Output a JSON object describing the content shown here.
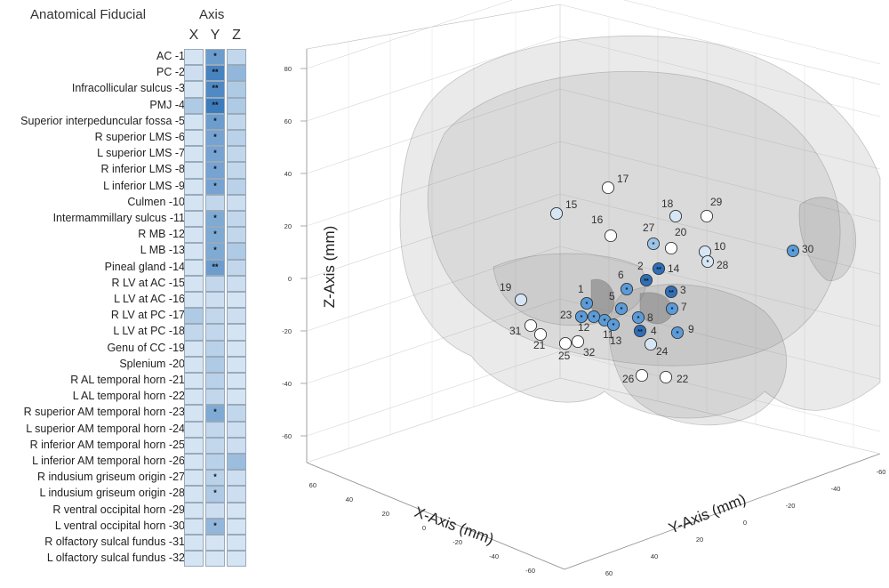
{
  "table": {
    "title": "Anatomical Fiducial",
    "axis_title": "Axis",
    "columns": [
      "X",
      "Y",
      "Z"
    ]
  },
  "chart_data": [
    {
      "type": "heatmap",
      "row_labels": [
        "AC -1",
        "PC -2",
        "Infracollicular sulcus -3",
        "PMJ -4",
        "Superior interpeduncular fossa -5",
        "R superior LMS -6",
        "L superior LMS -7",
        "R inferior LMS -8",
        "L inferior LMS -9",
        "Culmen -10",
        "Intermammillary sulcus -11",
        "R MB -12",
        "L MB -13",
        "Pineal gland -14",
        "R LV at AC -15",
        "L LV at AC -16",
        "R LV at PC -17",
        "L LV at PC -18",
        "Genu of CC -19",
        "Splenium -20",
        "R AL temporal horn -21",
        "L AL temporal horn -22",
        "R superior AM temporal horn -23",
        "L superior AM temporal horn -24",
        "R inferior AM temporal horn -25",
        "L inferior AM temporal horn -26",
        "R indusium griseum origin -27",
        "L indusium griseum origin -28",
        "R ventral occipital horn -29",
        "L ventral occipital horn -30",
        "R olfactory sulcal fundus -31",
        "L olfactory sulcal fundus -32"
      ],
      "col_labels": [
        "X",
        "Y",
        "Z"
      ],
      "values": [
        [
          0.1,
          0.65,
          0.2
        ],
        [
          0.15,
          0.85,
          0.45
        ],
        [
          0.1,
          0.8,
          0.3
        ],
        [
          0.3,
          0.9,
          0.3
        ],
        [
          0.1,
          0.65,
          0.2
        ],
        [
          0.1,
          0.6,
          0.25
        ],
        [
          0.1,
          0.6,
          0.2
        ],
        [
          0.1,
          0.6,
          0.2
        ],
        [
          0.1,
          0.6,
          0.25
        ],
        [
          0.1,
          0.2,
          0.15
        ],
        [
          0.1,
          0.55,
          0.2
        ],
        [
          0.1,
          0.55,
          0.2
        ],
        [
          0.1,
          0.55,
          0.3
        ],
        [
          0.1,
          0.65,
          0.2
        ],
        [
          0.1,
          0.2,
          0.15
        ],
        [
          0.1,
          0.15,
          0.1
        ],
        [
          0.3,
          0.2,
          0.15
        ],
        [
          0.2,
          0.2,
          0.1
        ],
        [
          0.1,
          0.25,
          0.1
        ],
        [
          0.1,
          0.3,
          0.1
        ],
        [
          0.1,
          0.25,
          0.1
        ],
        [
          0.1,
          0.2,
          0.1
        ],
        [
          0.1,
          0.55,
          0.2
        ],
        [
          0.1,
          0.2,
          0.15
        ],
        [
          0.1,
          0.2,
          0.15
        ],
        [
          0.1,
          0.25,
          0.4
        ],
        [
          0.1,
          0.25,
          0.15
        ],
        [
          0.1,
          0.3,
          0.15
        ],
        [
          0.1,
          0.15,
          0.1
        ],
        [
          0.1,
          0.45,
          0.1
        ],
        [
          0.1,
          0.1,
          0.1
        ],
        [
          0.1,
          0.1,
          0.1
        ]
      ],
      "significance": [
        [
          "",
          "*",
          ""
        ],
        [
          "",
          "**",
          ""
        ],
        [
          "",
          "**",
          ""
        ],
        [
          "",
          "**",
          ""
        ],
        [
          "",
          "*",
          ""
        ],
        [
          "",
          "*",
          ""
        ],
        [
          "",
          "*",
          ""
        ],
        [
          "",
          "*",
          ""
        ],
        [
          "",
          "*",
          ""
        ],
        [
          "",
          "",
          ""
        ],
        [
          "",
          "*",
          ""
        ],
        [
          "",
          "*",
          ""
        ],
        [
          "",
          "*",
          ""
        ],
        [
          "",
          "**",
          ""
        ],
        [
          "",
          "",
          ""
        ],
        [
          "",
          "",
          ""
        ],
        [
          "",
          "",
          ""
        ],
        [
          "",
          "",
          ""
        ],
        [
          "",
          "",
          ""
        ],
        [
          "",
          "",
          ""
        ],
        [
          "",
          "",
          ""
        ],
        [
          "",
          "",
          ""
        ],
        [
          "",
          "*",
          ""
        ],
        [
          "",
          "",
          ""
        ],
        [
          "",
          "",
          ""
        ],
        [
          "",
          "",
          ""
        ],
        [
          "",
          "*",
          ""
        ],
        [
          "",
          "*",
          ""
        ],
        [
          "",
          "",
          ""
        ],
        [
          "",
          "*",
          ""
        ],
        [
          "",
          "",
          ""
        ],
        [
          "",
          "",
          ""
        ]
      ],
      "color_low": "#e8f1fa",
      "color_high": "#2a6fb5"
    },
    {
      "type": "scatter",
      "xlabel": "X-Axis (mm)",
      "ylabel": "Y-Axis (mm)",
      "zlabel": "Z-Axis (mm)",
      "x_ticks": [
        "60",
        "40",
        "20",
        "0",
        "-20",
        "-40",
        "-60"
      ],
      "y_ticks": [
        "60",
        "40",
        "20",
        "0",
        "-20",
        "-40",
        "-60"
      ],
      "z_ticks": [
        "80",
        "60",
        "40",
        "20",
        "0",
        "-20",
        "-40",
        "-60"
      ],
      "points": [
        {
          "label": "1",
          "level": 3,
          "sig": "*"
        },
        {
          "label": "2",
          "level": 4,
          "sig": "**"
        },
        {
          "label": "3",
          "level": 4,
          "sig": "**"
        },
        {
          "label": "4",
          "level": 4,
          "sig": "**"
        },
        {
          "label": "5",
          "level": 3,
          "sig": "*"
        },
        {
          "label": "6",
          "level": 3,
          "sig": "*"
        },
        {
          "label": "7",
          "level": 3,
          "sig": "*"
        },
        {
          "label": "8",
          "level": 3,
          "sig": "*"
        },
        {
          "label": "9",
          "level": 3,
          "sig": "*"
        },
        {
          "label": "10",
          "level": 1,
          "sig": ""
        },
        {
          "label": "11",
          "level": 3,
          "sig": "*"
        },
        {
          "label": "12",
          "level": 3,
          "sig": "*"
        },
        {
          "label": "13",
          "level": 3,
          "sig": "*"
        },
        {
          "label": "14",
          "level": 4,
          "sig": "**"
        },
        {
          "label": "15",
          "level": 1,
          "sig": ""
        },
        {
          "label": "16",
          "level": 0,
          "sig": ""
        },
        {
          "label": "17",
          "level": 0,
          "sig": ""
        },
        {
          "label": "18",
          "level": 1,
          "sig": ""
        },
        {
          "label": "19",
          "level": 1,
          "sig": ""
        },
        {
          "label": "20",
          "level": 0,
          "sig": ""
        },
        {
          "label": "21",
          "level": 0,
          "sig": ""
        },
        {
          "label": "22",
          "level": 0,
          "sig": ""
        },
        {
          "label": "23",
          "level": 3,
          "sig": "*"
        },
        {
          "label": "24",
          "level": 1,
          "sig": ""
        },
        {
          "label": "25",
          "level": 0,
          "sig": ""
        },
        {
          "label": "26",
          "level": 0,
          "sig": ""
        },
        {
          "label": "27",
          "level": 2,
          "sig": "*"
        },
        {
          "label": "28",
          "level": 1,
          "sig": "*"
        },
        {
          "label": "29",
          "level": 0,
          "sig": ""
        },
        {
          "label": "30",
          "level": 3,
          "sig": "*"
        },
        {
          "label": "31",
          "level": 0,
          "sig": ""
        },
        {
          "label": "32",
          "level": 0,
          "sig": ""
        }
      ],
      "level_colors": [
        "#ffffff",
        "#d6e6f5",
        "#9cc4e8",
        "#5a9bd8",
        "#2f6fb8"
      ]
    }
  ]
}
